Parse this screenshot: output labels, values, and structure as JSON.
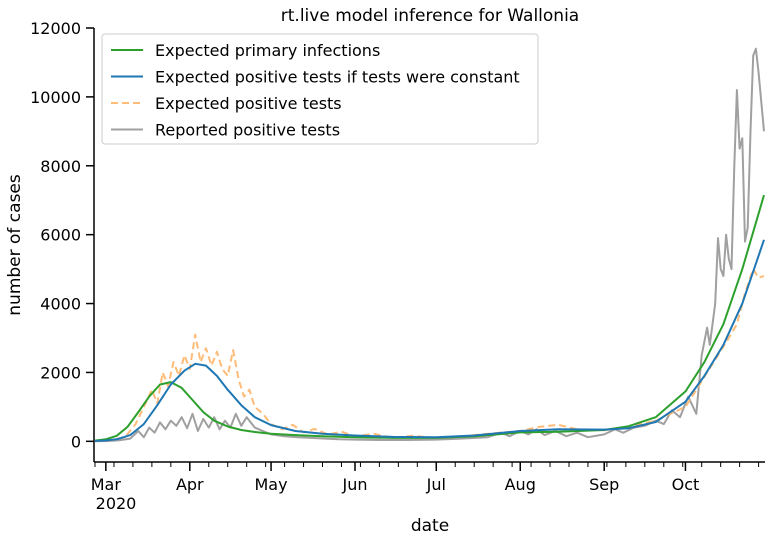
{
  "chart_data": {
    "type": "line",
    "title": "rt.live model inference for Wallonia",
    "xlabel": "date",
    "ylabel": "number of cases",
    "x_start": "2020-02-26",
    "x_end": "2020-10-30",
    "ylim": [
      -600,
      12000
    ],
    "yticks": [
      0,
      2000,
      4000,
      6000,
      8000,
      10000,
      12000
    ],
    "ytick_labels": [
      "0",
      "2000",
      "4000",
      "6000",
      "8000",
      "10000",
      "12000"
    ],
    "xticks": [
      {
        "date": "2020-03-01",
        "label": "Mar"
      },
      {
        "date": "2020-04-01",
        "label": "Apr"
      },
      {
        "date": "2020-05-01",
        "label": "May"
      },
      {
        "date": "2020-06-01",
        "label": "Jun"
      },
      {
        "date": "2020-07-01",
        "label": "Jul"
      },
      {
        "date": "2020-08-01",
        "label": "Aug"
      },
      {
        "date": "2020-09-01",
        "label": "Sep"
      },
      {
        "date": "2020-10-01",
        "label": "Oct"
      }
    ],
    "year_label": "2020",
    "grid": false,
    "legend_position": "top-left",
    "series": [
      {
        "name": "Expected primary infections",
        "color": "#2ca02c",
        "style": "solid",
        "points": [
          [
            "2020-02-26",
            20
          ],
          [
            "2020-03-01",
            60
          ],
          [
            "2020-03-05",
            160
          ],
          [
            "2020-03-09",
            420
          ],
          [
            "2020-03-13",
            850
          ],
          [
            "2020-03-17",
            1300
          ],
          [
            "2020-03-21",
            1650
          ],
          [
            "2020-03-25",
            1720
          ],
          [
            "2020-03-29",
            1550
          ],
          [
            "2020-04-02",
            1200
          ],
          [
            "2020-04-06",
            850
          ],
          [
            "2020-04-10",
            600
          ],
          [
            "2020-04-15",
            430
          ],
          [
            "2020-04-20",
            330
          ],
          [
            "2020-04-25",
            270
          ],
          [
            "2020-05-01",
            220
          ],
          [
            "2020-05-10",
            180
          ],
          [
            "2020-05-20",
            150
          ],
          [
            "2020-06-01",
            120
          ],
          [
            "2020-06-15",
            100
          ],
          [
            "2020-07-01",
            100
          ],
          [
            "2020-07-15",
            150
          ],
          [
            "2020-08-01",
            260
          ],
          [
            "2020-08-15",
            280
          ],
          [
            "2020-09-01",
            330
          ],
          [
            "2020-09-10",
            440
          ],
          [
            "2020-09-20",
            700
          ],
          [
            "2020-10-01",
            1450
          ],
          [
            "2020-10-08",
            2300
          ],
          [
            "2020-10-15",
            3400
          ],
          [
            "2020-10-22",
            5000
          ],
          [
            "2020-10-30",
            7150
          ]
        ]
      },
      {
        "name": "Expected positive tests if tests were constant",
        "color": "#1f77b4",
        "style": "solid",
        "points": [
          [
            "2020-02-26",
            10
          ],
          [
            "2020-03-01",
            25
          ],
          [
            "2020-03-05",
            60
          ],
          [
            "2020-03-10",
            180
          ],
          [
            "2020-03-15",
            500
          ],
          [
            "2020-03-20",
            1050
          ],
          [
            "2020-03-25",
            1650
          ],
          [
            "2020-03-30",
            2050
          ],
          [
            "2020-04-03",
            2250
          ],
          [
            "2020-04-07",
            2200
          ],
          [
            "2020-04-11",
            1900
          ],
          [
            "2020-04-15",
            1500
          ],
          [
            "2020-04-20",
            1050
          ],
          [
            "2020-04-25",
            700
          ],
          [
            "2020-05-01",
            470
          ],
          [
            "2020-05-10",
            300
          ],
          [
            "2020-05-20",
            220
          ],
          [
            "2020-06-01",
            170
          ],
          [
            "2020-06-15",
            130
          ],
          [
            "2020-07-01",
            120
          ],
          [
            "2020-07-15",
            170
          ],
          [
            "2020-08-01",
            300
          ],
          [
            "2020-08-15",
            350
          ],
          [
            "2020-09-01",
            340
          ],
          [
            "2020-09-10",
            380
          ],
          [
            "2020-09-20",
            560
          ],
          [
            "2020-10-01",
            1150
          ],
          [
            "2020-10-08",
            1900
          ],
          [
            "2020-10-15",
            2800
          ],
          [
            "2020-10-22",
            4000
          ],
          [
            "2020-10-30",
            5850
          ]
        ]
      },
      {
        "name": "Expected positive tests",
        "color": "#ffbb78",
        "style": "dashed",
        "points": [
          [
            "2020-02-26",
            10
          ],
          [
            "2020-03-03",
            40
          ],
          [
            "2020-03-08",
            120
          ],
          [
            "2020-03-12",
            500
          ],
          [
            "2020-03-15",
            1000
          ],
          [
            "2020-03-18",
            1500
          ],
          [
            "2020-03-20",
            1100
          ],
          [
            "2020-03-22",
            2000
          ],
          [
            "2020-03-24",
            1600
          ],
          [
            "2020-03-26",
            2300
          ],
          [
            "2020-03-28",
            1900
          ],
          [
            "2020-03-30",
            2500
          ],
          [
            "2020-04-01",
            2100
          ],
          [
            "2020-04-03",
            3100
          ],
          [
            "2020-04-05",
            2300
          ],
          [
            "2020-04-07",
            2700
          ],
          [
            "2020-04-09",
            2200
          ],
          [
            "2020-04-11",
            2600
          ],
          [
            "2020-04-13",
            2100
          ],
          [
            "2020-04-15",
            1900
          ],
          [
            "2020-04-17",
            2650
          ],
          [
            "2020-04-19",
            1800
          ],
          [
            "2020-04-21",
            1300
          ],
          [
            "2020-04-23",
            1500
          ],
          [
            "2020-04-25",
            1000
          ],
          [
            "2020-04-28",
            800
          ],
          [
            "2020-05-01",
            500
          ],
          [
            "2020-05-05",
            350
          ],
          [
            "2020-05-09",
            480
          ],
          [
            "2020-05-13",
            260
          ],
          [
            "2020-05-17",
            360
          ],
          [
            "2020-05-22",
            200
          ],
          [
            "2020-05-27",
            280
          ],
          [
            "2020-06-01",
            150
          ],
          [
            "2020-06-08",
            220
          ],
          [
            "2020-06-15",
            100
          ],
          [
            "2020-06-22",
            160
          ],
          [
            "2020-07-01",
            100
          ],
          [
            "2020-07-10",
            140
          ],
          [
            "2020-07-20",
            220
          ],
          [
            "2020-08-01",
            300
          ],
          [
            "2020-08-08",
            420
          ],
          [
            "2020-08-15",
            480
          ],
          [
            "2020-08-22",
            350
          ],
          [
            "2020-09-01",
            320
          ],
          [
            "2020-09-10",
            420
          ],
          [
            "2020-09-20",
            600
          ],
          [
            "2020-10-01",
            1000
          ],
          [
            "2020-10-05",
            1500
          ],
          [
            "2020-10-09",
            2000
          ],
          [
            "2020-10-13",
            2500
          ],
          [
            "2020-10-17",
            3000
          ],
          [
            "2020-10-20",
            3400
          ],
          [
            "2020-10-23",
            4300
          ],
          [
            "2020-10-26",
            5000
          ],
          [
            "2020-10-28",
            4750
          ],
          [
            "2020-10-30",
            4800
          ]
        ]
      },
      {
        "name": "Reported positive tests",
        "color": "#a0a0a0",
        "style": "solid",
        "points": [
          [
            "2020-02-26",
            0
          ],
          [
            "2020-03-02",
            10
          ],
          [
            "2020-03-06",
            30
          ],
          [
            "2020-03-10",
            80
          ],
          [
            "2020-03-13",
            300
          ],
          [
            "2020-03-15",
            120
          ],
          [
            "2020-03-17",
            400
          ],
          [
            "2020-03-19",
            250
          ],
          [
            "2020-03-21",
            550
          ],
          [
            "2020-03-23",
            350
          ],
          [
            "2020-03-25",
            600
          ],
          [
            "2020-03-27",
            450
          ],
          [
            "2020-03-29",
            700
          ],
          [
            "2020-03-31",
            380
          ],
          [
            "2020-04-02",
            800
          ],
          [
            "2020-04-04",
            300
          ],
          [
            "2020-04-06",
            650
          ],
          [
            "2020-04-08",
            400
          ],
          [
            "2020-04-10",
            700
          ],
          [
            "2020-04-12",
            350
          ],
          [
            "2020-04-14",
            600
          ],
          [
            "2020-04-16",
            400
          ],
          [
            "2020-04-18",
            800
          ],
          [
            "2020-04-20",
            450
          ],
          [
            "2020-04-22",
            700
          ],
          [
            "2020-04-25",
            400
          ],
          [
            "2020-04-28",
            300
          ],
          [
            "2020-05-01",
            200
          ],
          [
            "2020-05-06",
            150
          ],
          [
            "2020-05-11",
            120
          ],
          [
            "2020-05-16",
            100
          ],
          [
            "2020-05-21",
            80
          ],
          [
            "2020-05-26",
            60
          ],
          [
            "2020-06-01",
            50
          ],
          [
            "2020-06-10",
            40
          ],
          [
            "2020-06-20",
            40
          ],
          [
            "2020-07-01",
            50
          ],
          [
            "2020-07-10",
            80
          ],
          [
            "2020-07-20",
            120
          ],
          [
            "2020-07-25",
            250
          ],
          [
            "2020-07-28",
            150
          ],
          [
            "2020-08-01",
            300
          ],
          [
            "2020-08-04",
            200
          ],
          [
            "2020-08-07",
            350
          ],
          [
            "2020-08-10",
            180
          ],
          [
            "2020-08-14",
            300
          ],
          [
            "2020-08-18",
            150
          ],
          [
            "2020-08-22",
            250
          ],
          [
            "2020-08-26",
            120
          ],
          [
            "2020-09-01",
            200
          ],
          [
            "2020-09-05",
            350
          ],
          [
            "2020-09-08",
            250
          ],
          [
            "2020-09-12",
            400
          ],
          [
            "2020-09-16",
            450
          ],
          [
            "2020-09-20",
            600
          ],
          [
            "2020-09-23",
            500
          ],
          [
            "2020-09-26",
            900
          ],
          [
            "2020-09-29",
            700
          ],
          [
            "2020-10-02",
            1300
          ],
          [
            "2020-10-05",
            800
          ],
          [
            "2020-10-07",
            2500
          ],
          [
            "2020-10-09",
            3300
          ],
          [
            "2020-10-10",
            2800
          ],
          [
            "2020-10-12",
            4000
          ],
          [
            "2020-10-13",
            5900
          ],
          [
            "2020-10-14",
            5000
          ],
          [
            "2020-10-15",
            4800
          ],
          [
            "2020-10-16",
            6000
          ],
          [
            "2020-10-17",
            5300
          ],
          [
            "2020-10-18",
            5000
          ],
          [
            "2020-10-19",
            7900
          ],
          [
            "2020-10-20",
            10200
          ],
          [
            "2020-10-21",
            8500
          ],
          [
            "2020-10-22",
            8800
          ],
          [
            "2020-10-23",
            5800
          ],
          [
            "2020-10-24",
            6200
          ],
          [
            "2020-10-25",
            9000
          ],
          [
            "2020-10-26",
            11200
          ],
          [
            "2020-10-27",
            11400
          ],
          [
            "2020-10-28",
            10700
          ],
          [
            "2020-10-30",
            9000
          ]
        ]
      }
    ]
  }
}
